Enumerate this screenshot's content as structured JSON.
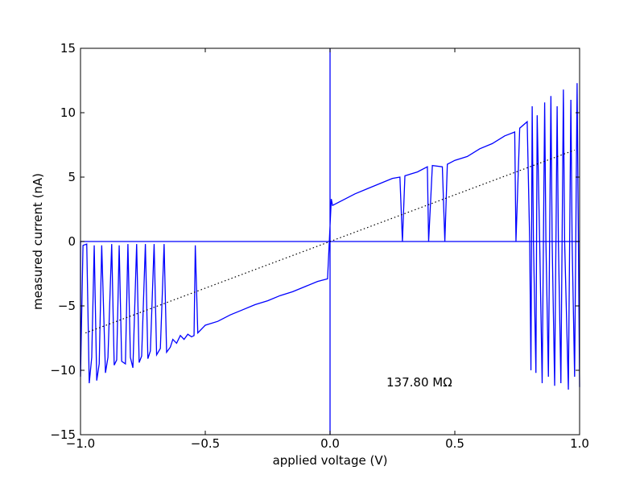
{
  "chart_data": {
    "type": "line",
    "xlabel": "applied voltage (V)",
    "ylabel": "measured current (nA)",
    "annotation": "137.80 MΩ",
    "xlim": [
      -1,
      1
    ],
    "ylim": [
      -15,
      15
    ],
    "xticks": [
      {
        "value": -1,
        "label": "−1.0"
      },
      {
        "value": -0.5,
        "label": "−0.5"
      },
      {
        "value": 0,
        "label": "0.0"
      },
      0.5,
      {
        "value": 1,
        "label": "1.0"
      }
    ],
    "yticks": [
      {
        "value": -15,
        "label": "−15"
      },
      {
        "value": -10,
        "label": "−10"
      },
      {
        "value": -5,
        "label": "−5"
      },
      0,
      5,
      10,
      15
    ],
    "grid": false,
    "series": [
      {
        "color": "#0000ff",
        "style": "solid",
        "x": [
          0,
          0,
          0,
          1,
          -1,
          -1.0,
          -0.99,
          -0.975,
          -0.965,
          -0.955,
          -0.945,
          -0.935,
          -0.925,
          -0.915,
          -0.9,
          -0.89,
          -0.875,
          -0.865,
          -0.855,
          -0.845,
          -0.835,
          -0.82,
          -0.81,
          -0.8,
          -0.79,
          -0.775,
          -0.765,
          -0.755,
          -0.74,
          -0.73,
          -0.72,
          -0.705,
          -0.695,
          -0.68,
          -0.665,
          -0.655,
          -0.64,
          -0.63,
          -0.615,
          -0.6,
          -0.585,
          -0.57,
          -0.555,
          -0.545,
          -0.54,
          -0.53,
          -0.5,
          -0.45,
          -0.4,
          -0.35,
          -0.3,
          -0.25,
          -0.2,
          -0.15,
          -0.1,
          -0.05,
          -0.01,
          0.005,
          0.01,
          0.05,
          0.1,
          0.15,
          0.2,
          0.25,
          0.28,
          0.29,
          0.3,
          0.35,
          0.39,
          0.395,
          0.41,
          0.45,
          0.46,
          0.47,
          0.5,
          0.55,
          0.6,
          0.65,
          0.7,
          0.74,
          0.745,
          0.76,
          0.79,
          0.8,
          0.805,
          0.81,
          0.815,
          0.825,
          0.83,
          0.84,
          0.85,
          0.86,
          0.865,
          0.875,
          0.885,
          0.89,
          0.9,
          0.91,
          0.915,
          0.925,
          0.935,
          0.94,
          0.955,
          0.965,
          0.97,
          0.98,
          0.99,
          1.0
        ],
        "values": [
          -15,
          15,
          0,
          0,
          0,
          -10.5,
          -0.3,
          -0.2,
          -11,
          -9,
          -0.3,
          -10.8,
          -9.5,
          -0.3,
          -10.2,
          -9,
          -0.2,
          -9.6,
          -9.2,
          -0.3,
          -9.3,
          -9.5,
          -0.2,
          -9,
          -9.8,
          -0.2,
          -9.4,
          -8.9,
          -0.2,
          -9.1,
          -8.5,
          -0.2,
          -8.8,
          -8.3,
          -0.2,
          -8.6,
          -8.2,
          -7.6,
          -7.9,
          -7.3,
          -7.6,
          -7.2,
          -7.4,
          -7.3,
          -0.3,
          -7.1,
          -6.5,
          -6.2,
          -5.7,
          -5.3,
          -4.9,
          -4.6,
          -4.2,
          -3.9,
          -3.5,
          -3.1,
          -2.9,
          3.3,
          2.8,
          3.2,
          3.7,
          4.1,
          4.5,
          4.9,
          5.0,
          0,
          5.1,
          5.4,
          5.8,
          0,
          5.9,
          5.8,
          0,
          6.0,
          6.3,
          6.6,
          7.2,
          7.6,
          8.2,
          8.5,
          0,
          8.8,
          9.3,
          0,
          -10,
          10.5,
          0,
          -10.2,
          9.8,
          0,
          -11,
          10.8,
          0,
          -10.5,
          11.3,
          0,
          -11.2,
          10.5,
          0,
          -11,
          11.8,
          0,
          -11.5,
          11,
          0,
          -10.5,
          12.3,
          -11.3
        ]
      },
      {
        "color": "#000000",
        "style": "dotted",
        "x": [
          -0.98,
          0.98
        ],
        "values": [
          -7.1,
          7.1
        ]
      }
    ]
  }
}
